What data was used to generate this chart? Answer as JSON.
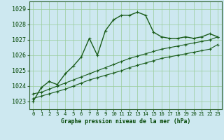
{
  "title": "Graphe pression niveau de la mer (hPa)",
  "background_color": "#cde8f0",
  "grid_color": "#99cc99",
  "line_color": "#1a5c1a",
  "x_ticks": [
    0,
    1,
    2,
    3,
    4,
    5,
    6,
    7,
    8,
    9,
    10,
    11,
    12,
    13,
    14,
    15,
    16,
    17,
    18,
    19,
    20,
    21,
    22,
    23
  ],
  "ylim": [
    1022.5,
    1029.5
  ],
  "y_ticks": [
    1023,
    1024,
    1025,
    1026,
    1027,
    1028,
    1029
  ],
  "main_line": [
    1023.0,
    1023.9,
    1024.3,
    1024.1,
    1024.8,
    1025.3,
    1025.9,
    1027.1,
    1026.0,
    1027.6,
    1028.3,
    1028.6,
    1028.6,
    1028.8,
    1028.6,
    1027.5,
    1027.2,
    1027.1,
    1027.1,
    1027.2,
    1027.1,
    1027.2,
    1027.4,
    1027.2
  ],
  "line2": [
    1023.5,
    1023.6,
    1023.8,
    1024.0,
    1024.2,
    1024.4,
    1024.6,
    1024.8,
    1025.0,
    1025.2,
    1025.4,
    1025.6,
    1025.8,
    1025.95,
    1026.1,
    1026.25,
    1026.4,
    1026.5,
    1026.6,
    1026.7,
    1026.8,
    1026.9,
    1027.0,
    1027.2
  ],
  "line3": [
    1023.2,
    1023.35,
    1023.5,
    1023.65,
    1023.8,
    1024.0,
    1024.2,
    1024.4,
    1024.55,
    1024.7,
    1024.85,
    1025.0,
    1025.2,
    1025.35,
    1025.5,
    1025.65,
    1025.8,
    1025.9,
    1026.0,
    1026.1,
    1026.2,
    1026.3,
    1026.4,
    1026.7
  ]
}
